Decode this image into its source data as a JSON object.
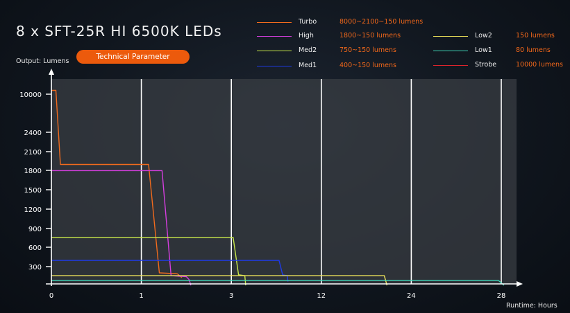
{
  "header": {
    "title": "8 x SFT-25R HI 6500K LEDs",
    "output_label": "Output: Lumens",
    "param_button": "Technical Parameter",
    "runtime_label": "Runtime: Hours"
  },
  "legend": [
    {
      "name": "Turbo",
      "range": "8000~2100~150 lumens",
      "color": "#f26b1d",
      "range_color": "#f0671a"
    },
    {
      "name": "High",
      "range": "1800~150 lumens",
      "color": "#d63ee0",
      "range_color": "#f0671a"
    },
    {
      "name": "Med2",
      "range": "750~150 lumens",
      "color": "#c9e94a",
      "range_color": "#f0671a"
    },
    {
      "name": "Med1",
      "range": "400~150 lumens",
      "color": "#1f3be8",
      "range_color": "#f0671a"
    },
    {
      "name": "Low2",
      "range": "150 lumens",
      "color": "#eee35a",
      "range_color": "#f0671a"
    },
    {
      "name": "Low1",
      "range": "80 lumens",
      "color": "#3fd6b8",
      "range_color": "#f0671a"
    },
    {
      "name": "Strobe",
      "range": "10000 lumens",
      "color": "#e0242c",
      "range_color": "#f0671a"
    }
  ],
  "chart_data": {
    "type": "line",
    "title": "8 x SFT-25R HI 6500K LEDs",
    "xlabel": "Runtime: Hours",
    "ylabel": "Output: Lumens",
    "x_ticks": [
      "0",
      "1",
      "3",
      "12",
      "24",
      "28"
    ],
    "y_ticks": [
      "300",
      "600",
      "900",
      "1200",
      "1500",
      "1800",
      "2100",
      "2400",
      "10000"
    ],
    "grid": "vertical",
    "axis_note": "piecewise non-linear axes; x positions given in tick-index units (0 = tick 0, 5 = tick 28), y positions given in tick-index units (1 = 300 ... 8 = 2400, 9 = 10000)",
    "series": [
      {
        "name": "Turbo",
        "color": "#f26b1d",
        "points": [
          [
            0,
            9.1
          ],
          [
            0.05,
            9.1
          ],
          [
            0.1,
            6.3
          ],
          [
            1.08,
            6.3
          ],
          [
            1.2,
            0.65
          ],
          [
            1.4,
            0.6
          ],
          [
            1.45,
            0.4
          ]
        ]
      },
      {
        "name": "High",
        "color": "#d63ee0",
        "points": [
          [
            0,
            5.98
          ],
          [
            1.23,
            5.98
          ],
          [
            1.33,
            0.5
          ],
          [
            1.5,
            0.45
          ],
          [
            1.53,
            0.3
          ],
          [
            1.55,
            0
          ]
        ]
      },
      {
        "name": "Med2",
        "color": "#c9e94a",
        "points": [
          [
            0,
            2.5
          ],
          [
            2.02,
            2.5
          ],
          [
            2.08,
            0.55
          ],
          [
            2.15,
            0.5
          ],
          [
            2.16,
            0
          ]
        ]
      },
      {
        "name": "Med1",
        "color": "#1f3be8",
        "points": [
          [
            0,
            1.3
          ],
          [
            2.53,
            1.3
          ],
          [
            2.57,
            0.55
          ],
          [
            2.62,
            0.5
          ],
          [
            2.63,
            0.2
          ]
        ]
      },
      {
        "name": "Low2",
        "color": "#eee35a",
        "points": [
          [
            0,
            0.5
          ],
          [
            3.7,
            0.5
          ],
          [
            3.73,
            0
          ]
        ]
      },
      {
        "name": "Low1",
        "color": "#3fd6b8",
        "points": [
          [
            0,
            0.25
          ],
          [
            4.97,
            0.25
          ],
          [
            5.03,
            0
          ]
        ]
      }
    ]
  }
}
